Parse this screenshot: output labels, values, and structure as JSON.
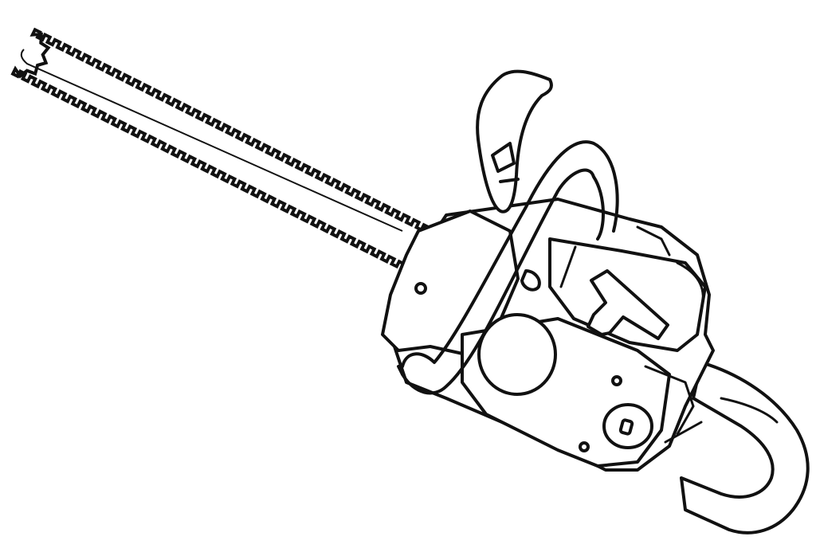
{
  "illustration": {
    "subject": "chainsaw-icon",
    "style": "black line art on white",
    "colors": {
      "background": "#ffffff",
      "line": "#111111"
    }
  }
}
